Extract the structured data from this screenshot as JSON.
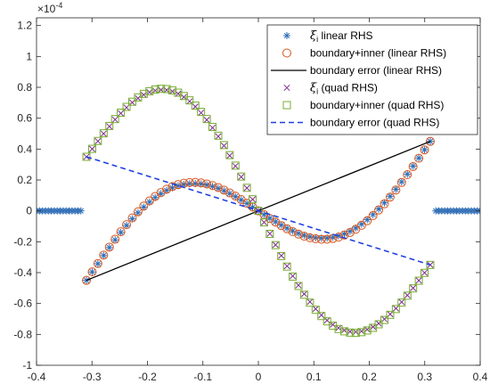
{
  "chart_data": {
    "type": "scatter",
    "title": "",
    "xlabel": "",
    "ylabel": "",
    "xlim": [
      -0.4,
      0.4
    ],
    "ylim": [
      -1,
      1.25
    ],
    "y_scale_exponent_label": "×10",
    "y_scale_exponent": "-4",
    "x_ticks": [
      "-0.4",
      "-0.3",
      "-0.2",
      "-0.1",
      "0",
      "0.1",
      "0.2",
      "0.3",
      "0.4"
    ],
    "y_ticks": [
      "-1",
      "-0.8",
      "-0.6",
      "-0.4",
      "-0.2",
      "0",
      "0.2",
      "0.4",
      "0.6",
      "0.8",
      "1",
      "1.2"
    ],
    "grid": false,
    "legend_position": "top-right",
    "series": [
      {
        "name_symbol": "ξ",
        "name_subscript": "i",
        "name_rest": " linear RHS",
        "marker": "asterisk",
        "color": "#2f6db5",
        "support": [
          -0.31,
          0.31
        ],
        "amplitude": 0.48,
        "phase": "sin",
        "outside_zero_left": [
          -0.4,
          -0.32
        ],
        "outside_zero_right": [
          0.32,
          0.4
        ]
      },
      {
        "name": "boundary+inner (linear RHS)",
        "marker": "circle",
        "color": "#d9541c",
        "support": [
          -0.31,
          0.31
        ],
        "amplitude": 0.49,
        "phase": "sin"
      },
      {
        "name": "boundary error (linear RHS)",
        "line": "solid",
        "color": "#000000",
        "x": [
          -0.31,
          0.31
        ],
        "y": [
          -0.45,
          0.45
        ]
      },
      {
        "name_symbol": "ξ",
        "name_subscript": "i",
        "name_rest": " (quad RHS)",
        "marker": "x",
        "color": "#7e2f8e",
        "support": [
          -0.31,
          0.31
        ],
        "amplitude": 0.88,
        "phase": "neg-sin-minus-linear"
      },
      {
        "name": "boundary+inner (quad RHS)",
        "marker": "square",
        "color": "#77ac30",
        "support": [
          -0.31,
          0.31
        ],
        "amplitude": 0.89,
        "phase": "neg-sin-minus-linear"
      },
      {
        "name": "boundary error (quad RHS)",
        "line": "dashed",
        "color": "#1f3fe0",
        "x": [
          -0.31,
          0.31
        ],
        "y": [
          0.35,
          -0.35
        ]
      }
    ]
  }
}
